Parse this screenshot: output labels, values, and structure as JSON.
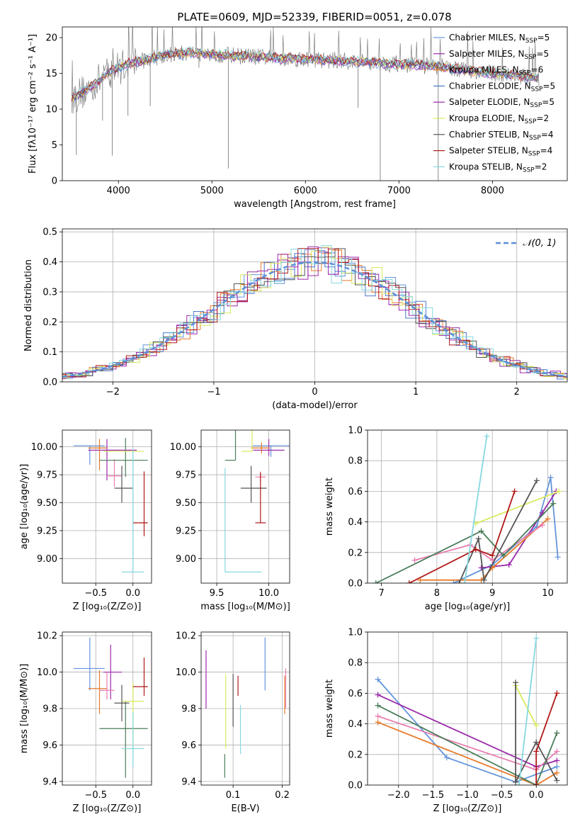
{
  "figure_title": "PLATE=0609, MJD=52339, FIBERID=0051, z=0.078",
  "series_colors": [
    "#6495dc",
    "#9b2aaa",
    "#e77b2b",
    "#4a7acb",
    "#9b2aaa",
    "#d9ea5c",
    "#555555",
    "#b01818",
    "#85d8df"
  ],
  "chart_data": [
    {
      "id": "spectrum",
      "type": "line",
      "title": "PLATE=0609, MJD=52339, FIBERID=0051, z=0.078",
      "xlabel": "wavelength [Angstrom, rest frame]",
      "ylabel": "Flux [fλ10⁻¹⁷ erg cm⁻² s⁻¹ A⁻¹]",
      "xlim": [
        3400,
        8800
      ],
      "ylim": [
        0,
        21.5
      ],
      "xticks": [
        4000,
        5000,
        6000,
        7000,
        8000
      ],
      "yticks": [
        0,
        5,
        10,
        15,
        20
      ],
      "grid": false,
      "legend_position": "right",
      "legend": [
        {
          "label": "Chabrier MILES, N",
          "sub": "SSP",
          "tail": "=5",
          "color": "#6495dc"
        },
        {
          "label": "Salpeter MILES, N",
          "sub": "SSP",
          "tail": "=5",
          "color": "#9b2aaa"
        },
        {
          "label": "Kroupa MILES, N",
          "sub": "SSP",
          "tail": "=6",
          "color": "#e77b2b"
        },
        {
          "label": "Chabrier ELODIE, N",
          "sub": "SSP",
          "tail": "=5",
          "color": "#4a7acb"
        },
        {
          "label": "Salpeter ELODIE, N",
          "sub": "SSP",
          "tail": "=5",
          "color": "#9b2aaa"
        },
        {
          "label": "Kroupa ELODIE, N",
          "sub": "SSP",
          "tail": "=2",
          "color": "#d9ea5c"
        },
        {
          "label": "Chabrier STELIB, N",
          "sub": "SSP",
          "tail": "=4",
          "color": "#555555"
        },
        {
          "label": "Salpeter STELIB, N",
          "sub": "SSP",
          "tail": "=4",
          "color": "#b01818"
        },
        {
          "label": "Kroupa STELIB, N",
          "sub": "SSP",
          "tail": "=2",
          "color": "#85d8df"
        }
      ],
      "continuum": [
        [
          3500,
          11.5
        ],
        [
          3700,
          13.0
        ],
        [
          3900,
          15.2
        ],
        [
          4100,
          16.4
        ],
        [
          4300,
          16.9
        ],
        [
          4500,
          17.6
        ],
        [
          4800,
          17.9
        ],
        [
          5000,
          17.7
        ],
        [
          5500,
          17.3
        ],
        [
          6000,
          17.0
        ],
        [
          6500,
          16.7
        ],
        [
          7000,
          16.3
        ],
        [
          7400,
          16.0
        ],
        [
          7800,
          15.3
        ],
        [
          8200,
          14.8
        ],
        [
          8500,
          14.3
        ]
      ],
      "absorption": [
        [
          3550,
          3.6
        ],
        [
          3830,
          8.4
        ],
        [
          3934,
          3.5
        ],
        [
          4102,
          9.1
        ],
        [
          4340,
          10.4
        ],
        [
          4861,
          15.8
        ],
        [
          5175,
          1.7
        ],
        [
          6563,
          10.2
        ],
        [
          6800,
          0.0
        ],
        [
          7420,
          0.0
        ]
      ]
    },
    {
      "id": "residuals",
      "type": "line",
      "xlabel": "(data-model)/error",
      "ylabel": "Normed distribution",
      "xlim": [
        -2.5,
        2.5
      ],
      "ylim": [
        0,
        0.51
      ],
      "xticks": [
        -2,
        -1,
        0,
        1,
        2
      ],
      "yticks": [
        0.0,
        0.1,
        0.2,
        0.3,
        0.4,
        0.5
      ],
      "grid": true,
      "legend_position": "top-right",
      "legend": [
        {
          "label": "𝒩(0, 1)",
          "color": "#5b8fd8"
        }
      ],
      "reference_curve": "standard normal pdf, mean 0, sigma 1"
    },
    {
      "id": "age-vs-Z",
      "type": "scatter",
      "xlabel": "Z [log₁₀(Z/Z⊙)]",
      "ylabel": "age  [log₁₀(age/yr)]",
      "xlim": [
        -0.95,
        0.25
      ],
      "ylim": [
        8.78,
        10.15
      ],
      "xticks": [
        -0.5,
        0.0
      ],
      "yticks": [
        9.0,
        9.25,
        9.5,
        9.75,
        10.0
      ],
      "grid": true,
      "points": [
        {
          "x": -0.58,
          "xerr": [
            0.22,
            0.2
          ],
          "y": 10.01,
          "yerr": [
            0.17,
            0.0
          ],
          "color": "#6495dc"
        },
        {
          "x": -0.35,
          "xerr": [
            0.25,
            0.4
          ],
          "y": 9.97,
          "yerr": [
            0.27,
            0.1
          ],
          "color": "#9b2aaa"
        },
        {
          "x": -0.45,
          "xerr": [
            0.15,
            0.1
          ],
          "y": 9.99,
          "yerr": [
            0.2,
            0.08
          ],
          "color": "#e77b2b"
        },
        {
          "x": -0.25,
          "xerr": [
            0.1,
            0.1
          ],
          "y": 9.74,
          "yerr": [
            0.1,
            0.15
          ],
          "color": "#e97db0"
        },
        {
          "x": -0.1,
          "xerr": [
            0.35,
            0.3
          ],
          "y": 9.88,
          "yerr": [
            0.15,
            0.2
          ],
          "color": "#4a7d5a"
        },
        {
          "x": -0.05,
          "xerr": [
            0.35,
            0.2
          ],
          "y": 9.96,
          "yerr": [
            0.0,
            0.0
          ],
          "color": "#d9ea5c"
        },
        {
          "x": -0.15,
          "xerr": [
            0.1,
            0.15
          ],
          "y": 9.63,
          "yerr": [
            0.13,
            0.2
          ],
          "color": "#555555"
        },
        {
          "x": 0.15,
          "xerr": [
            0.15,
            0.05
          ],
          "y": 9.32,
          "yerr": [
            0.12,
            0.46
          ],
          "color": "#b01818"
        },
        {
          "x": 0.0,
          "xerr": [
            0.15,
            0.15
          ],
          "y": 8.88,
          "yerr": [
            0.0,
            1.1
          ],
          "color": "#85d8df"
        }
      ]
    },
    {
      "id": "age-vs-mass",
      "type": "scatter",
      "xlabel": "mass [log₁₀(M/M⊙)]",
      "xlim": [
        9.35,
        10.2
      ],
      "ylim": [
        8.78,
        10.15
      ],
      "xticks": [
        9.5,
        10.0
      ],
      "yticks": [
        9.0,
        9.25,
        9.5,
        9.75,
        10.0
      ],
      "grid": true,
      "points": [
        {
          "x": 10.02,
          "xerr": [
            0.18,
            0.2
          ],
          "y": 10.01,
          "yerr": [
            0.1,
            0.0
          ],
          "color": "#6495dc"
        },
        {
          "x": 10.0,
          "xerr": [
            0.15,
            0.15
          ],
          "y": 9.97,
          "yerr": [
            0.05,
            0.1
          ],
          "color": "#9b2aaa"
        },
        {
          "x": 9.93,
          "xerr": [
            0.1,
            0.08
          ],
          "y": 9.99,
          "yerr": [
            0.05,
            0.05
          ],
          "color": "#e77b2b"
        },
        {
          "x": 9.92,
          "xerr": [
            0.05,
            0.05
          ],
          "y": 9.73,
          "yerr": [
            0.05,
            0.05
          ],
          "color": "#e97db0"
        },
        {
          "x": 9.68,
          "xerr": [
            0.1,
            0.0
          ],
          "y": 9.88,
          "yerr": [
            0.0,
            1.02
          ],
          "color": "#4a7d5a"
        },
        {
          "x": 9.84,
          "xerr": [
            0.1,
            0.0
          ],
          "y": 9.96,
          "yerr": [
            0.0,
            1.08
          ],
          "color": "#d9ea5c"
        },
        {
          "x": 9.83,
          "xerr": [
            0.1,
            0.15
          ],
          "y": 9.63,
          "yerr": [
            0.13,
            0.2
          ],
          "color": "#555555"
        },
        {
          "x": 9.92,
          "xerr": [
            0.05,
            0.05
          ],
          "y": 9.32,
          "yerr": [
            0.0,
            0.45
          ],
          "color": "#b01818"
        },
        {
          "x": 9.58,
          "xerr": [
            0.0,
            0.35
          ],
          "y": 8.88,
          "yerr": [
            0.0,
            0.93
          ],
          "color": "#85d8df"
        }
      ]
    },
    {
      "id": "massweight-vs-age",
      "type": "line",
      "xlabel": "age  [log₁₀(age/yr)]",
      "ylabel": "mass weight",
      "xlim": [
        6.75,
        10.35
      ],
      "ylim": [
        0,
        1.0
      ],
      "xticks": [
        7,
        8,
        9,
        10
      ],
      "yticks": [
        0.0,
        0.2,
        0.4,
        0.6,
        0.8,
        1.0
      ],
      "grid": true,
      "series": [
        {
          "color": "#6495dc",
          "points": [
            [
              8.3,
              0.0
            ],
            [
              9.0,
              0.12
            ],
            [
              9.8,
              0.37
            ],
            [
              10.05,
              0.69
            ],
            [
              10.18,
              0.17
            ]
          ]
        },
        {
          "color": "#9b2aaa",
          "points": [
            [
              8.8,
              0.1
            ],
            [
              9.3,
              0.12
            ],
            [
              9.9,
              0.46
            ],
            [
              10.15,
              0.6
            ]
          ]
        },
        {
          "color": "#e77b2b",
          "points": [
            [
              7.7,
              0.02
            ],
            [
              8.8,
              0.02
            ],
            [
              9.0,
              0.1
            ],
            [
              10.0,
              0.42
            ]
          ]
        },
        {
          "color": "#e97db0",
          "points": [
            [
              7.6,
              0.15
            ],
            [
              8.6,
              0.25
            ],
            [
              9.0,
              0.15
            ],
            [
              9.9,
              0.38
            ]
          ]
        },
        {
          "color": "#4a7d5a",
          "points": [
            [
              6.9,
              0.0
            ],
            [
              8.8,
              0.34
            ],
            [
              9.2,
              0.18
            ],
            [
              10.1,
              0.52
            ]
          ]
        },
        {
          "color": "#d9ea5c",
          "points": [
            [
              8.7,
              0.39
            ],
            [
              10.2,
              0.6
            ]
          ]
        },
        {
          "color": "#555555",
          "points": [
            [
              8.4,
              0.0
            ],
            [
              8.75,
              0.29
            ],
            [
              8.85,
              0.02
            ],
            [
              9.8,
              0.67
            ]
          ]
        },
        {
          "color": "#b01818",
          "points": [
            [
              7.5,
              0.0
            ],
            [
              8.7,
              0.22
            ],
            [
              9.0,
              0.18
            ],
            [
              9.4,
              0.6
            ]
          ]
        },
        {
          "color": "#85d8df",
          "points": [
            [
              8.5,
              0.0
            ],
            [
              8.9,
              0.96
            ]
          ]
        }
      ]
    },
    {
      "id": "mass-vs-Z",
      "type": "scatter",
      "xlabel": "Z [log₁₀(Z/Z⊙)]",
      "ylabel": "mass [log₁₀(M/M⊙)]",
      "xlim": [
        -0.95,
        0.25
      ],
      "ylim": [
        9.38,
        10.22
      ],
      "xticks": [
        -0.5,
        0.0
      ],
      "yticks": [
        9.4,
        9.6,
        9.8,
        10.0,
        10.2
      ],
      "grid": true,
      "points": [
        {
          "x": -0.58,
          "xerr": [
            0.22,
            0.2
          ],
          "y": 10.02,
          "yerr": [
            0.12,
            0.17
          ],
          "color": "#6495dc"
        },
        {
          "x": -0.3,
          "xerr": [
            0.1,
            0.15
          ],
          "y": 10.0,
          "yerr": [
            0.15,
            0.15
          ],
          "color": "#9b2aaa"
        },
        {
          "x": -0.45,
          "xerr": [
            0.15,
            0.1
          ],
          "y": 9.91,
          "yerr": [
            0.14,
            0.1
          ],
          "color": "#e77b2b"
        },
        {
          "x": -0.35,
          "xerr": [
            0.1,
            0.1
          ],
          "y": 9.9,
          "yerr": [
            0.05,
            0.1
          ],
          "color": "#e97db0"
        },
        {
          "x": -0.1,
          "xerr": [
            0.35,
            0.3
          ],
          "y": 9.69,
          "yerr": [
            0.27,
            0.15
          ],
          "color": "#4a7d5a"
        },
        {
          "x": 0.0,
          "xerr": [
            0.15,
            0.15
          ],
          "y": 9.84,
          "yerr": [
            0.25,
            0.1
          ],
          "color": "#d9ea5c"
        },
        {
          "x": -0.15,
          "xerr": [
            0.1,
            0.1
          ],
          "y": 9.83,
          "yerr": [
            0.1,
            0.1
          ],
          "color": "#555555"
        },
        {
          "x": 0.15,
          "xerr": [
            0.15,
            0.05
          ],
          "y": 9.92,
          "yerr": [
            0.05,
            0.16
          ],
          "color": "#b01818"
        },
        {
          "x": 0.0,
          "xerr": [
            0.15,
            0.15
          ],
          "y": 9.58,
          "yerr": [
            0.1,
            0.2
          ],
          "color": "#85d8df"
        }
      ]
    },
    {
      "id": "mass-vs-EBV",
      "type": "scatter",
      "xlabel": "E(B-V)",
      "xlim": [
        0.035,
        0.215
      ],
      "ylim": [
        9.38,
        10.22
      ],
      "xticks": [
        0.1,
        0.2
      ],
      "yticks": [
        9.4,
        9.6,
        9.8,
        10.0,
        10.2
      ],
      "grid": true,
      "points": [
        {
          "x": 0.045,
          "y": 10.0,
          "yerr": [
            0.2,
            0.12
          ],
          "color": "#9b2aaa"
        },
        {
          "x": 0.083,
          "y": 9.55,
          "yerr": [
            0.13,
            0.0
          ],
          "color": "#4a7d5a"
        },
        {
          "x": 0.085,
          "y": 9.84,
          "yerr": [
            0.26,
            0.15
          ],
          "color": "#d9ea5c"
        },
        {
          "x": 0.1,
          "y": 9.83,
          "yerr": [
            0.13,
            0.16
          ],
          "color": "#555555"
        },
        {
          "x": 0.11,
          "y": 9.92,
          "yerr": [
            0.05,
            0.06
          ],
          "color": "#b01818"
        },
        {
          "x": 0.115,
          "y": 9.7,
          "yerr": [
            0.15,
            0.12
          ],
          "color": "#85d8df"
        },
        {
          "x": 0.165,
          "y": 10.0,
          "yerr": [
            0.1,
            0.19
          ],
          "color": "#6495dc"
        },
        {
          "x": 0.205,
          "y": 9.88,
          "yerr": [
            0.11,
            0.1
          ],
          "color": "#e77b2b"
        },
        {
          "x": 0.207,
          "y": 9.9,
          "yerr": [
            0.1,
            0.12
          ],
          "color": "#e97db0"
        }
      ]
    },
    {
      "id": "massweight-vs-Z",
      "type": "line",
      "xlabel": "Z [log₁₀(Z/Z⊙)]",
      "ylabel": "mass weight",
      "xlim": [
        -2.45,
        0.45
      ],
      "ylim": [
        0,
        1.0
      ],
      "xticks": [
        -2.0,
        -1.5,
        -1.0,
        -0.5,
        0.0
      ],
      "yticks": [
        0.0,
        0.2,
        0.4,
        0.6,
        0.8,
        1.0
      ],
      "grid": true,
      "series": [
        {
          "color": "#6495dc",
          "points": [
            [
              -2.3,
              0.69
            ],
            [
              -1.3,
              0.18
            ],
            [
              -0.3,
              0.02
            ],
            [
              0.3,
              0.12
            ]
          ]
        },
        {
          "color": "#9b2aaa",
          "points": [
            [
              -2.3,
              0.59
            ],
            [
              0.0,
              0.12
            ],
            [
              0.3,
              0.16
            ]
          ]
        },
        {
          "color": "#e77b2b",
          "points": [
            [
              -2.3,
              0.41
            ],
            [
              0.0,
              0.0
            ],
            [
              0.3,
              0.08
            ]
          ]
        },
        {
          "color": "#e97db0",
          "points": [
            [
              -2.3,
              0.45
            ],
            [
              0.0,
              0.1
            ],
            [
              0.3,
              0.22
            ]
          ]
        },
        {
          "color": "#4a7d5a",
          "points": [
            [
              -2.3,
              0.52
            ],
            [
              0.0,
              0.0
            ],
            [
              0.3,
              0.34
            ]
          ]
        },
        {
          "color": "#d9ea5c",
          "points": [
            [
              -0.3,
              0.65
            ],
            [
              0.0,
              0.39
            ]
          ]
        },
        {
          "color": "#555555",
          "points": [
            [
              -0.3,
              0.67
            ],
            [
              -0.3,
              0.02
            ],
            [
              0.0,
              0.28
            ],
            [
              0.3,
              0.03
            ]
          ]
        },
        {
          "color": "#b01818",
          "points": [
            [
              0.0,
              0.0
            ],
            [
              0.0,
              0.22
            ],
            [
              0.3,
              0.6
            ]
          ]
        },
        {
          "color": "#85d8df",
          "points": [
            [
              -0.25,
              0.0
            ],
            [
              0.0,
              0.96
            ]
          ]
        }
      ]
    }
  ]
}
